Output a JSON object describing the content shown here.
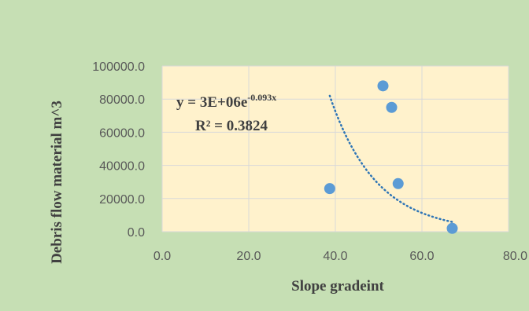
{
  "chart_data": {
    "type": "scatter",
    "title": "",
    "xlabel": "Slope gradeint",
    "ylabel": "Debris flow material m^3",
    "xlim": [
      0,
      80
    ],
    "ylim": [
      0,
      100000
    ],
    "x_ticks": [
      "0.0",
      "20.0",
      "40.0",
      "60.0",
      "80.0"
    ],
    "y_ticks": [
      "0.0",
      "20000.0",
      "40000.0",
      "60000.0",
      "80000.0",
      "100000.0"
    ],
    "grid": true,
    "legend": "none",
    "series": [
      {
        "points": [
          {
            "x": 38.7,
            "y": 26000
          },
          {
            "x": 51.0,
            "y": 88000
          },
          {
            "x": 53.0,
            "y": 75000
          },
          {
            "x": 54.5,
            "y": 29000
          },
          {
            "x": 67.0,
            "y": 2000
          }
        ],
        "marker_color": "#5b9bd5"
      }
    ],
    "trendline": {
      "type": "exponential",
      "a": 3000000,
      "b": -0.093,
      "x_range": [
        38.7,
        67.0
      ],
      "color": "#2e75b6",
      "style": "dotted",
      "equation_base": "y = 3E+06e",
      "equation_exponent": "-0.093x",
      "r_squared": "R² = 0.3824"
    },
    "colors": {
      "page_background": "#c6dfb4",
      "plot_background": "#fff2cc",
      "gridline": "#d9d9d9"
    }
  }
}
